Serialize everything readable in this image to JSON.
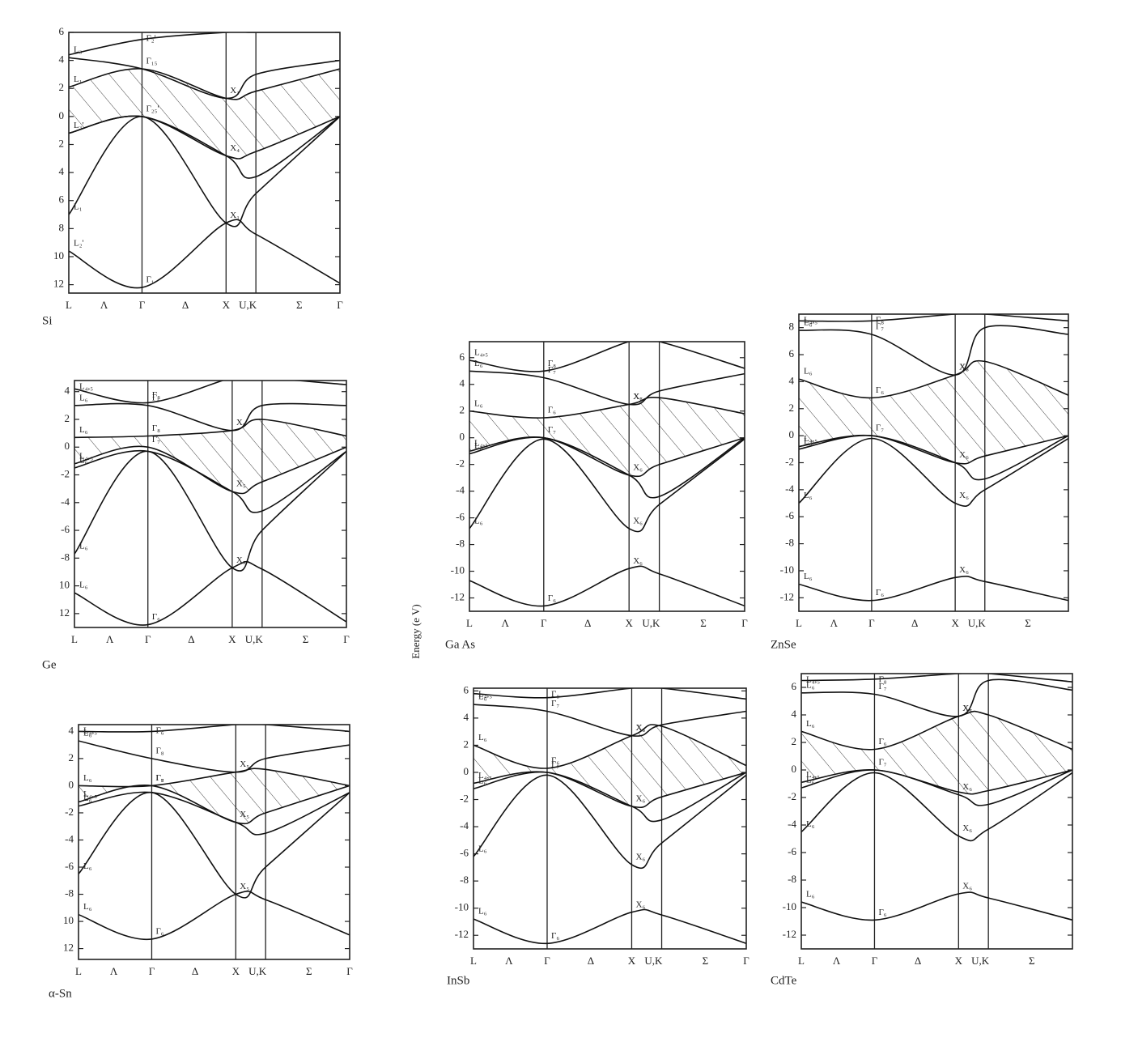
{
  "axis_label": "Energy (e V)",
  "panels": [
    {
      "name": "Si",
      "ylim": [
        -12.6,
        6
      ],
      "yticks": [
        6,
        4,
        2,
        0,
        {
          "value": -2,
          "label": "2"
        },
        {
          "value": -4,
          "label": "4"
        },
        {
          "value": -6,
          "label": "6"
        },
        {
          "value": -8,
          "label": "8"
        },
        {
          "value": -10,
          "label": "10"
        },
        {
          "value": -12,
          "label": "12"
        }
      ],
      "klabels": [
        "L",
        "Λ",
        "Γ",
        "Δ",
        "X",
        "U,K",
        "Σ",
        "Γ"
      ],
      "bands": [
        {
          "values": [
            -9.6,
            -12.2,
            -7.6,
            -8.4,
            -11.9
          ],
          "L": "L₂'",
          "G": "Γ₁"
        },
        {
          "values": [
            -7.0,
            0,
            -7.6,
            -5.5,
            0
          ],
          "L": "L₁",
          "X": "X₁"
        },
        {
          "values": [
            -1.2,
            0,
            -2.8,
            -4.3,
            0
          ],
          "X": "X₄"
        },
        {
          "values": [
            -1.2,
            0,
            -2.8,
            -2.5,
            0
          ],
          "L": "L₃'",
          "G": "Γ₂₅'"
        },
        {
          "values": [
            2.1,
            3.4,
            1.3,
            1.8,
            3.4
          ],
          "L": "L₁",
          "X": "X₁"
        },
        {
          "values": [
            4.2,
            3.4,
            1.3,
            3.0,
            4.0
          ],
          "L": "L₃",
          "G": "Γ₁₅"
        },
        {
          "values": [
            4.4,
            5.5,
            6,
            6,
            6
          ],
          "G": "Γ₂'"
        }
      ]
    },
    {
      "name": "Ge",
      "ylim": [
        -13,
        4.8
      ],
      "yticks": [
        4,
        2,
        0,
        -2,
        -4,
        -6,
        -8,
        {
          "value": -10,
          "label": "10"
        },
        {
          "value": -12,
          "label": "12"
        }
      ],
      "klabels": [
        "L",
        "Λ",
        "Γ",
        "Δ",
        "X",
        "U,K",
        "Σ",
        "Γ"
      ],
      "bands": [
        {
          "values": [
            -10.5,
            -12.8,
            -8.7,
            -8.8,
            -12.6
          ],
          "L": "L₆",
          "G": "Γ₆"
        },
        {
          "values": [
            -7.7,
            -0.3,
            -8.7,
            -6,
            -0.3
          ],
          "L": "L₆",
          "X": "X₅"
        },
        {
          "values": [
            -1.5,
            -0.3,
            -3.2,
            -4.6,
            -0.3
          ],
          "L": "L₆",
          "X": "X₅"
        },
        {
          "values": [
            -1.2,
            0,
            -3.2,
            -2.5,
            0
          ],
          "L": "L₄,₅",
          "G": "Γ₇"
        },
        {
          "values": [
            0.7,
            0.8,
            1.2,
            2,
            0.8
          ],
          "L": "L₆",
          "G": "Γ₈"
        },
        {
          "values": [
            3,
            3,
            1.2,
            3,
            3
          ],
          "L": "L₆",
          "G": "Γ₆",
          "X": "X₅"
        },
        {
          "values": [
            4.2,
            3.2,
            5,
            5,
            4.5
          ],
          "L": "L₄,₅",
          "G": "Γ₈"
        }
      ]
    },
    {
      "name": "α-Sn",
      "ylim": [
        -12.8,
        4.5
      ],
      "yticks": [
        4,
        2,
        0,
        -2,
        -4,
        -6,
        -8,
        {
          "value": -10,
          "label": "10"
        },
        {
          "value": -12,
          "label": "12"
        }
      ],
      "klabels": [
        "L",
        "Λ",
        "Γ",
        "Δ",
        "X",
        "U,K",
        "Σ",
        "Γ"
      ],
      "bands": [
        {
          "values": [
            -9.5,
            -11.3,
            -8,
            -8.4,
            -11
          ],
          "L": "L₆",
          "G": "Γ₆"
        },
        {
          "values": [
            -6.5,
            -0.5,
            -8,
            -6,
            -0.5
          ],
          "L": "L₆",
          "X": "X₅"
        },
        {
          "values": [
            -1.5,
            -0.5,
            -2.7,
            -3.5,
            -0.5
          ],
          "L": "L₆",
          "X": "X₅"
        },
        {
          "values": [
            -1.2,
            0,
            -2.7,
            -2,
            0
          ],
          "L": "L₄,₅",
          "G": "Γ₇"
        },
        {
          "values": [
            0,
            0,
            1,
            1.2,
            0
          ],
          "L": "L₆",
          "G": "Γ₈"
        },
        {
          "values": [
            3.3,
            2,
            1,
            2,
            3
          ],
          "L": "L₆",
          "G": "Γ₈",
          "X": "X₅"
        },
        {
          "values": [
            4,
            4,
            4.5,
            4.5,
            4
          ],
          "L": "L₄,₅",
          "G": "Γ₆"
        }
      ]
    },
    {
      "name": "Ga As",
      "ylim": [
        -13,
        7.2
      ],
      "yticks": [
        6,
        4,
        2,
        0,
        -2,
        -4,
        -6,
        -8,
        -10,
        -12
      ],
      "klabels": [
        "L",
        "Λ",
        "Γ",
        "Δ",
        "X",
        "U,K",
        "Σ",
        "Γ"
      ],
      "bands": [
        {
          "values": [
            -10.7,
            -12.6,
            -9.8,
            -10.2,
            -12.6
          ],
          "G": "Γ₆",
          "X": "X₆"
        },
        {
          "values": [
            -6.8,
            -0.1,
            -6.8,
            -5,
            -0.1
          ],
          "L": "L₆",
          "X": "X₆"
        },
        {
          "values": [
            -1.2,
            0,
            -2.8,
            -4.4,
            0
          ],
          "L": "L₆",
          "X": "X₆"
        },
        {
          "values": [
            -1,
            0,
            -2.8,
            -2,
            0
          ],
          "L": "L₄,₅",
          "G": "Γ₇"
        },
        {
          "values": [
            2,
            1.5,
            2.5,
            3,
            1.8
          ],
          "L": "L₆",
          "G": "Γ₆",
          "X": "X₆"
        },
        {
          "values": [
            5,
            4.5,
            2.5,
            3.5,
            4.8
          ],
          "L": "L₆",
          "G": "Γ₇",
          "X": "X₇"
        },
        {
          "values": [
            5.8,
            5,
            7.2,
            7.2,
            5.2
          ],
          "L": "L₄,₅",
          "G": "Γ₈"
        }
      ]
    },
    {
      "name": "ZnSe",
      "ylim": [
        -13,
        9
      ],
      "yticks": [
        8,
        6,
        4,
        2,
        0,
        -2,
        -4,
        -6,
        -8,
        -10,
        -12
      ],
      "klabels": [
        "L",
        "Λ",
        "Γ",
        "Δ",
        "X",
        "U,K",
        "Σ"
      ],
      "bands": [
        {
          "values": [
            -11,
            -12.2,
            -10.5,
            -10.8,
            -12.2
          ],
          "L": "L₆",
          "G": "Γ₆",
          "X": "X₆"
        },
        {
          "values": [
            -5,
            -0.2,
            -5,
            -4,
            -0.2
          ],
          "L": "L₆",
          "X": "X₆"
        },
        {
          "values": [
            -1,
            0,
            -2,
            -3.2,
            0
          ],
          "L": "L₆",
          "X": "X₆"
        },
        {
          "values": [
            -0.8,
            0,
            -2,
            -1.5,
            0
          ],
          "L": "L₄,₅",
          "G": "Γ₇"
        },
        {
          "values": [
            4.2,
            2.8,
            4.5,
            5.5,
            3
          ],
          "L": "L₆",
          "G": "Γ₆",
          "X": "X₆"
        },
        {
          "values": [
            7.8,
            7.5,
            4.5,
            8,
            7.5
          ],
          "L": "L₆",
          "G": "Γ₇",
          "X": "X₇"
        },
        {
          "values": [
            8.5,
            8.5,
            9,
            9,
            8.5
          ],
          "L": "L₄,₅",
          "G": "Γ₈"
        }
      ]
    },
    {
      "name": "InSb",
      "ylim": [
        -13,
        6.2
      ],
      "yticks": [
        6,
        4,
        2,
        0,
        -2,
        -4,
        -6,
        -8,
        -10,
        -12
      ],
      "klabels": [
        "L",
        "Λ",
        "Γ",
        "Δ",
        "X",
        "U,K",
        "Σ",
        "Γ"
      ],
      "bands": [
        {
          "values": [
            -10.8,
            -12.6,
            -10.3,
            -10.5,
            -12.6
          ],
          "L": "L₆",
          "G": "Γ₆",
          "X": "X₆"
        },
        {
          "values": [
            -6.2,
            -0.2,
            -6.8,
            -5.2,
            -0.2
          ],
          "L": "L₆",
          "X": "X₆"
        },
        {
          "values": [
            -1.2,
            0,
            -2.5,
            -3.5,
            0
          ],
          "L": "L₆",
          "X": "X₆"
        },
        {
          "values": [
            -0.8,
            0,
            -2.5,
            -1.8,
            0
          ],
          "L": "L₄,₅",
          "G": "Γ₇"
        },
        {
          "values": [
            2,
            0.3,
            2.7,
            3.4,
            0.5
          ],
          "L": "L₆",
          "G": "Γ₆",
          "X": "X₆"
        },
        {
          "values": [
            5,
            4.5,
            2.7,
            3.5,
            4.5
          ],
          "L": "L₆",
          "G": "Γ₇",
          "X": "X₇"
        },
        {
          "values": [
            5.8,
            5.5,
            6.2,
            6.2,
            5.4
          ],
          "L": "L₄,₅",
          "G": "Γ₈"
        }
      ]
    },
    {
      "name": "CdTe",
      "ylim": [
        -13,
        7
      ],
      "yticks": [
        6,
        4,
        2,
        0,
        -2,
        -4,
        -6,
        -8,
        -10,
        -12
      ],
      "klabels": [
        "L",
        "Λ",
        "Γ",
        "Δ",
        "X",
        "U,K",
        "Σ"
      ],
      "bands": [
        {
          "values": [
            -9.6,
            -10.9,
            -9,
            -9.3,
            -10.9
          ],
          "L": "L₆",
          "G": "Γ₆",
          "X": "X₆"
        },
        {
          "values": [
            -4.5,
            -0.2,
            -4.8,
            -4.3,
            -0.2
          ],
          "L": "L₆",
          "X": "X₆"
        },
        {
          "values": [
            -1.3,
            0,
            -1.8,
            -2.5,
            0
          ],
          "L": "L₆",
          "X": "X₆"
        },
        {
          "values": [
            -0.9,
            0,
            -1.6,
            -1.5,
            0
          ],
          "L": "L₄,₅",
          "G": "Γ₇"
        },
        {
          "values": [
            2.8,
            1.5,
            3.9,
            4,
            1.5
          ],
          "L": "L₆",
          "G": "Γ₆",
          "X": "X₆"
        },
        {
          "values": [
            5.6,
            5.5,
            3.9,
            6.5,
            5.8
          ],
          "L": "L₆",
          "G": "Γ₇",
          "X": "X₇"
        },
        {
          "values": [
            6.5,
            6.6,
            7,
            7,
            6.4
          ],
          "L": "L₄,₅",
          "G": "Γ₈"
        }
      ]
    }
  ]
}
